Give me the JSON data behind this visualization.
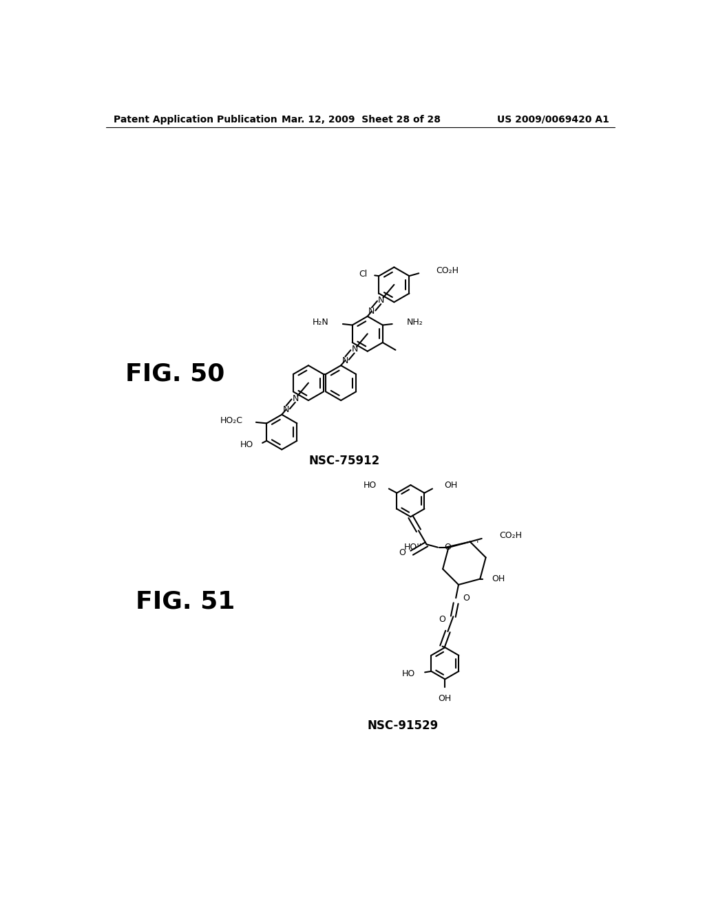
{
  "background_color": "#ffffff",
  "page_width": 10.24,
  "page_height": 13.2,
  "header_left": "Patent Application Publication",
  "header_center": "Mar. 12, 2009  Sheet 28 of 28",
  "header_right": "US 2009/0069420 A1",
  "fig50_text": "FIG. 50",
  "fig51_text": "FIG. 51",
  "nsc75912_text": "NSC-75912",
  "nsc91529_text": "NSC-91529"
}
